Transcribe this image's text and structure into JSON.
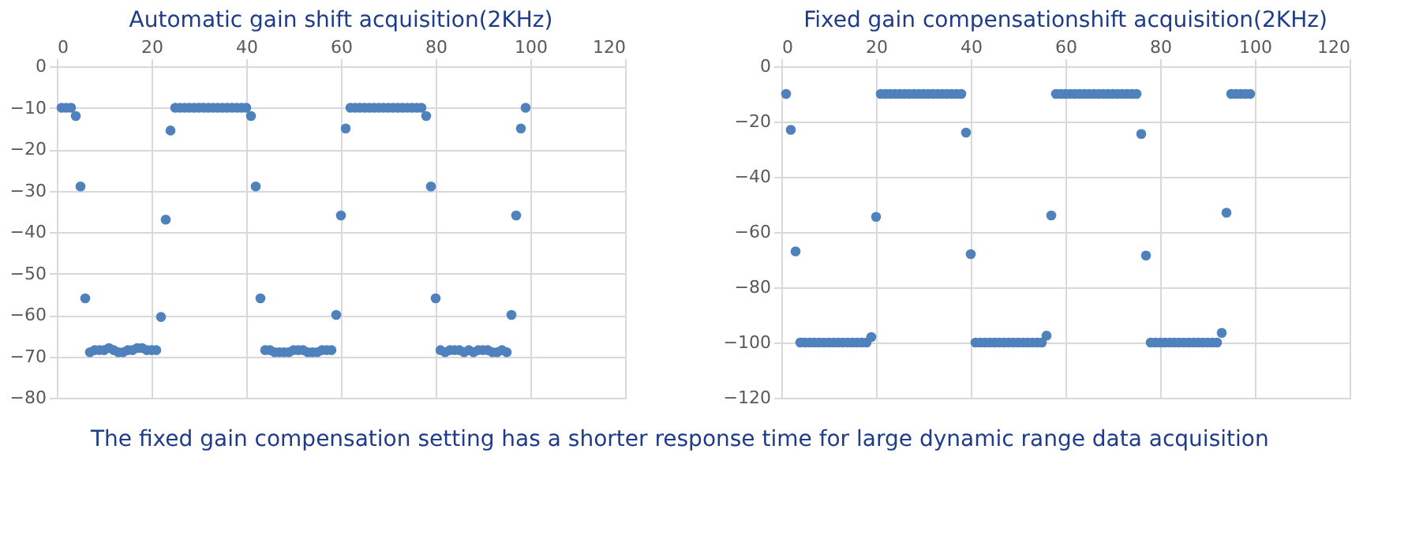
{
  "chart_data": [
    {
      "type": "scatter",
      "title": "Automatic  gain shift acquisition(2KHz)",
      "marker": "circle",
      "color": "#4f81bd",
      "grid": true,
      "x": [
        1,
        2,
        3,
        4,
        5,
        6,
        7,
        8,
        9,
        10,
        11,
        12,
        13,
        14,
        15,
        16,
        17,
        18,
        19,
        20,
        21,
        22,
        23,
        24,
        25,
        26,
        27,
        28,
        29,
        30,
        31,
        32,
        33,
        34,
        35,
        36,
        37,
        38,
        39,
        40,
        41,
        42,
        43,
        44,
        45,
        46,
        47,
        48,
        49,
        50,
        51,
        52,
        53,
        54,
        55,
        56,
        57,
        58,
        59,
        60,
        61,
        62,
        63,
        64,
        65,
        66,
        67,
        68,
        69,
        70,
        71,
        72,
        73,
        74,
        75,
        76,
        77,
        78,
        79,
        80,
        81,
        82,
        83,
        84,
        85,
        86,
        87,
        88,
        89,
        90,
        91,
        92,
        93,
        94,
        95,
        96,
        97,
        98,
        99
      ],
      "values": [
        -10,
        -10,
        -10,
        -12,
        -29,
        -56,
        -69,
        -68.5,
        -68.5,
        -68.5,
        -68,
        -68.5,
        -69,
        -69,
        -68.5,
        -68.5,
        -68,
        -68,
        -68.5,
        -68.5,
        -68.5,
        -60.5,
        -37,
        -15.5,
        -10,
        -10,
        -10,
        -10,
        -10,
        -10,
        -10,
        -10,
        -10,
        -10,
        -10,
        -10,
        -10,
        -10,
        -10,
        -10,
        -12,
        -29,
        -56,
        -68.5,
        -68.5,
        -69,
        -69,
        -69,
        -69,
        -68.5,
        -68.5,
        -68.5,
        -69,
        -69,
        -69,
        -68.5,
        -68.5,
        -68.5,
        -60,
        -36,
        -15,
        -10,
        -10,
        -10,
        -10,
        -10,
        -10,
        -10,
        -10,
        -10,
        -10,
        -10,
        -10,
        -10,
        -10,
        -10,
        -10,
        -12,
        -29,
        -56,
        -68.5,
        -69,
        -68.5,
        -68.5,
        -68.5,
        -69,
        -68.5,
        -69,
        -68.5,
        -68.5,
        -68.5,
        -69,
        -69,
        -68.5,
        -69,
        -60,
        -36,
        -15,
        -10
      ],
      "xlim": [
        0,
        120
      ],
      "xticks": [
        0,
        20,
        40,
        60,
        80,
        100,
        120
      ],
      "ylim": [
        -80,
        0
      ],
      "yticks": [
        -80,
        -70,
        -60,
        -50,
        -40,
        -30,
        -20,
        -10,
        0
      ],
      "annotations": [
        "The fixed gain compensation setting has a shorter response time for large dynamic range data acquisition"
      ]
    },
    {
      "type": "scatter",
      "title": "Fixed gain compensationshift acquisition(2KHz)",
      "marker": "circle",
      "color": "#4f81bd",
      "grid": true,
      "x": [
        1,
        2,
        3,
        4,
        5,
        6,
        7,
        8,
        9,
        10,
        11,
        12,
        13,
        14,
        15,
        16,
        17,
        18,
        19,
        20,
        21,
        22,
        23,
        24,
        25,
        26,
        27,
        28,
        29,
        30,
        31,
        32,
        33,
        34,
        35,
        36,
        37,
        38,
        39,
        40,
        41,
        42,
        43,
        44,
        45,
        46,
        47,
        48,
        49,
        50,
        51,
        52,
        53,
        54,
        55,
        56,
        57,
        58,
        59,
        60,
        61,
        62,
        63,
        64,
        65,
        66,
        67,
        68,
        69,
        70,
        71,
        72,
        73,
        74,
        75,
        76,
        77,
        78,
        79,
        80,
        81,
        82,
        83,
        84,
        85,
        86,
        87,
        88,
        89,
        90,
        91,
        92,
        93,
        94,
        95,
        96,
        97,
        98,
        99
      ],
      "values": [
        -10,
        -23,
        -67,
        -100,
        -100,
        -100,
        -100,
        -100,
        -100,
        -100,
        -100,
        -100,
        -100,
        -100,
        -100,
        -100,
        -100,
        -100,
        -98,
        -54.5,
        -10,
        -10,
        -10,
        -10,
        -10,
        -10,
        -10,
        -10,
        -10,
        -10,
        -10,
        -10,
        -10,
        -10,
        -10,
        -10,
        -10,
        -10,
        -24,
        -68,
        -100,
        -100,
        -100,
        -100,
        -100,
        -100,
        -100,
        -100,
        -100,
        -100,
        -100,
        -100,
        -100,
        -100,
        -100,
        -97.5,
        -54,
        -10,
        -10,
        -10,
        -10,
        -10,
        -10,
        -10,
        -10,
        -10,
        -10,
        -10,
        -10,
        -10,
        -10,
        -10,
        -10,
        -10,
        -10,
        -24.5,
        -68.5,
        -100,
        -100,
        -100,
        -100,
        -100,
        -100,
        -100,
        -100,
        -100,
        -100,
        -100,
        -100,
        -100,
        -100,
        -100,
        -96.5,
        -53,
        -10,
        -10,
        -10,
        -10,
        -10
      ],
      "xlim": [
        0,
        120
      ],
      "xticks": [
        0,
        20,
        40,
        60,
        80,
        100,
        120
      ],
      "ylim": [
        -120,
        0
      ],
      "yticks": [
        -120,
        -100,
        -80,
        -60,
        -40,
        -20,
        0
      ]
    }
  ]
}
